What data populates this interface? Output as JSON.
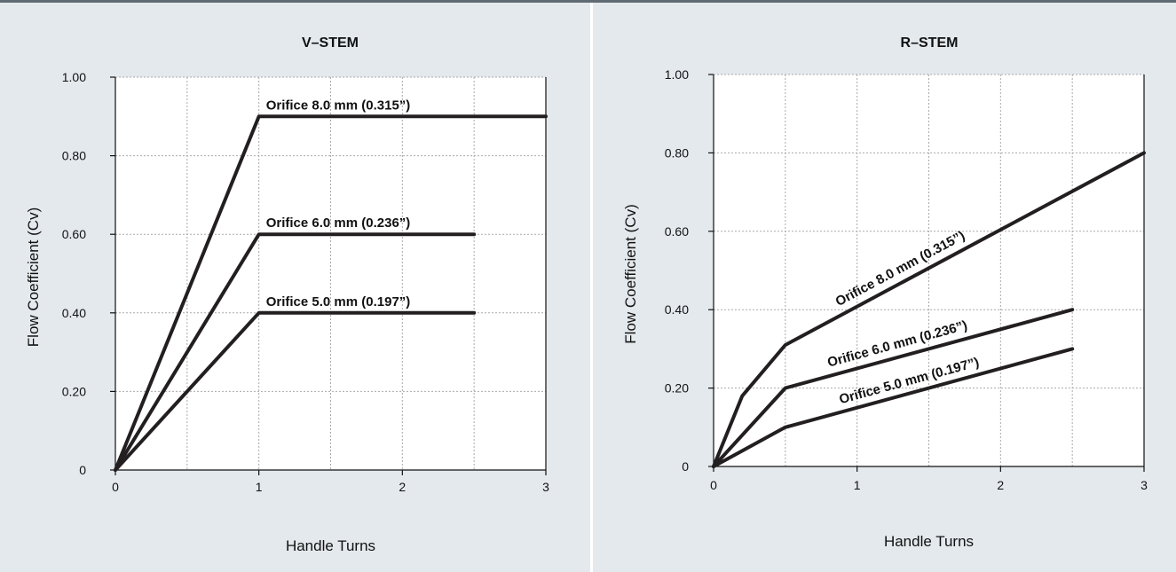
{
  "chart_data": [
    {
      "type": "line",
      "title": "V–STEM",
      "xlabel": "Handle Turns",
      "ylabel": "Flow Coefficient (Cv)",
      "xlim": [
        0,
        3
      ],
      "ylim": [
        0,
        1.0
      ],
      "xticks": [
        "0",
        "1",
        "2",
        "3"
      ],
      "yticks": [
        "0",
        "0.20",
        "0.40",
        "0.60",
        "0.80",
        "1.00"
      ],
      "grid": true,
      "series": [
        {
          "name": "Orifice 8.0 mm (0.315”)",
          "x": [
            0,
            1,
            3
          ],
          "y": [
            0,
            0.9,
            0.9
          ]
        },
        {
          "name": "Orifice 6.0 mm (0.236”)",
          "x": [
            0,
            1,
            2.5
          ],
          "y": [
            0,
            0.6,
            0.6
          ]
        },
        {
          "name": "Orifice 5.0 mm (0.197”)",
          "x": [
            0,
            1,
            2.5
          ],
          "y": [
            0,
            0.4,
            0.4
          ]
        }
      ]
    },
    {
      "type": "line",
      "title": "R–STEM",
      "xlabel": "Handle Turns",
      "ylabel": "Flow Coefficient (Cv)",
      "xlim": [
        0,
        3
      ],
      "ylim": [
        0,
        1.0
      ],
      "xticks": [
        "0",
        "1",
        "2",
        "3"
      ],
      "yticks": [
        "0",
        "0.20",
        "0.40",
        "0.60",
        "0.80",
        "1.00"
      ],
      "grid": true,
      "series": [
        {
          "name": "Orifice 8.0 mm (0.315”)",
          "x": [
            0,
            0.2,
            0.5,
            3
          ],
          "y": [
            0,
            0.18,
            0.31,
            0.8
          ]
        },
        {
          "name": "Orifice 6.0 mm (0.236”)",
          "x": [
            0,
            0.5,
            2.5
          ],
          "y": [
            0,
            0.2,
            0.4
          ]
        },
        {
          "name": "Orifice 5.0 mm (0.197”)",
          "x": [
            0,
            0.5,
            2.5
          ],
          "y": [
            0,
            0.1,
            0.3
          ]
        }
      ]
    }
  ]
}
